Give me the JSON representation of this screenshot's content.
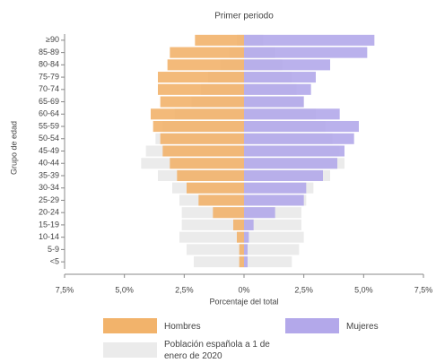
{
  "chart_data": {
    "type": "pyramid",
    "title": "Primer periodo",
    "x_label": "Porcentaje del total",
    "y_label": "Grupo de edad",
    "categories": [
      "≥90",
      "85-89",
      "80-84",
      "75-79",
      "70-74",
      "65-69",
      "60-64",
      "55-59",
      "50-54",
      "45-49",
      "40-44",
      "35-39",
      "30-34",
      "25-29",
      "20-24",
      "15-19",
      "10-14",
      "5-9",
      "<5"
    ],
    "xlim": [
      -7.5,
      7.5
    ],
    "xticks": [
      {
        "value": -7.5,
        "label": "7,5%"
      },
      {
        "value": -5,
        "label": "5,0%"
      },
      {
        "value": -2.5,
        "label": "2,5%"
      },
      {
        "value": 0,
        "label": "0%"
      },
      {
        "value": 2.5,
        "label": "2,5%"
      },
      {
        "value": 5,
        "label": "5,0%"
      },
      {
        "value": 7.5,
        "label": "7,5%"
      }
    ],
    "reference": {
      "name": "Población española a 1 de enero de 2020",
      "color": "#ebebeb",
      "values_hombres": [
        -0.3,
        -0.6,
        -1.0,
        -1.5,
        -1.8,
        -2.2,
        -2.9,
        -3.4,
        -3.7,
        -4.1,
        -4.3,
        -3.6,
        -3.0,
        -2.7,
        -2.6,
        -2.6,
        -2.7,
        -2.4,
        -2.1
      ],
      "values_mujeres": [
        0.8,
        1.3,
        1.6,
        2.0,
        2.2,
        2.5,
        3.0,
        3.4,
        3.7,
        4.0,
        4.2,
        3.6,
        2.9,
        2.6,
        2.4,
        2.4,
        2.5,
        2.3,
        2.0
      ]
    },
    "series": [
      {
        "name": "Hombres",
        "color": "#f2b36b",
        "values": [
          -2.05,
          -3.1,
          -3.2,
          -3.6,
          -3.6,
          -3.5,
          -3.9,
          -3.8,
          -3.5,
          -3.4,
          -3.1,
          -2.8,
          -2.4,
          -1.9,
          -1.3,
          -0.45,
          -0.3,
          -0.2,
          -0.2
        ]
      },
      {
        "name": "Mujeres",
        "color": "#b3a8ea",
        "values": [
          5.45,
          5.15,
          3.6,
          3.0,
          2.8,
          2.5,
          4.0,
          4.8,
          4.6,
          4.2,
          3.9,
          3.3,
          2.6,
          2.5,
          1.3,
          0.4,
          0.2,
          0.15,
          0.15
        ]
      }
    ]
  }
}
